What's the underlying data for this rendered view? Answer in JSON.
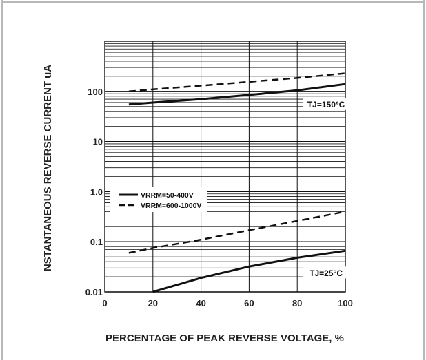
{
  "chart_data": {
    "type": "line",
    "xlabel": "PERCENTAGE OF PEAK REVERSE VOLTAGE, %",
    "ylabel": "NSTANTANEOUS REVERSE CURRENT uA",
    "x_ticks": [
      "0",
      "20",
      "40",
      "60",
      "80",
      "100"
    ],
    "y_ticks": [
      "0.01",
      "0.1",
      "1.0",
      "10",
      "100"
    ],
    "xlim": [
      0,
      100
    ],
    "ylim": [
      0.01,
      1000
    ],
    "y_scale": "log",
    "grid": true,
    "legend": {
      "placement": "middle-left",
      "entries": [
        {
          "label": "VRRM=50-400V",
          "style": "solid"
        },
        {
          "label": "VRRM=600-1000V",
          "style": "dashed"
        }
      ]
    },
    "annotations": [
      {
        "text": "TJ=150°C",
        "at": [
          92,
          55
        ]
      },
      {
        "text": "TJ=25°C",
        "at": [
          92,
          0.024
        ]
      }
    ],
    "series": [
      {
        "name": "VRRM=50-400V",
        "group": "TJ=150°C",
        "style": "solid",
        "x": [
          10,
          20,
          40,
          60,
          80,
          100
        ],
        "y": [
          55,
          60,
          70,
          85,
          105,
          140
        ]
      },
      {
        "name": "VRRM=600-1000V",
        "group": "TJ=150°C",
        "style": "dashed",
        "x": [
          10,
          20,
          40,
          60,
          80,
          100
        ],
        "y": [
          100,
          110,
          130,
          155,
          185,
          230
        ]
      },
      {
        "name": "VRRM=50-400V",
        "group": "TJ=25°C",
        "style": "solid",
        "x": [
          20,
          40,
          60,
          80,
          100
        ],
        "y": [
          0.01,
          0.019,
          0.032,
          0.048,
          0.066
        ]
      },
      {
        "name": "VRRM=600-1000V",
        "group": "TJ=25°C",
        "style": "dashed",
        "x": [
          10,
          20,
          40,
          60,
          80,
          100
        ],
        "y": [
          0.06,
          0.075,
          0.11,
          0.17,
          0.26,
          0.4
        ]
      }
    ]
  }
}
